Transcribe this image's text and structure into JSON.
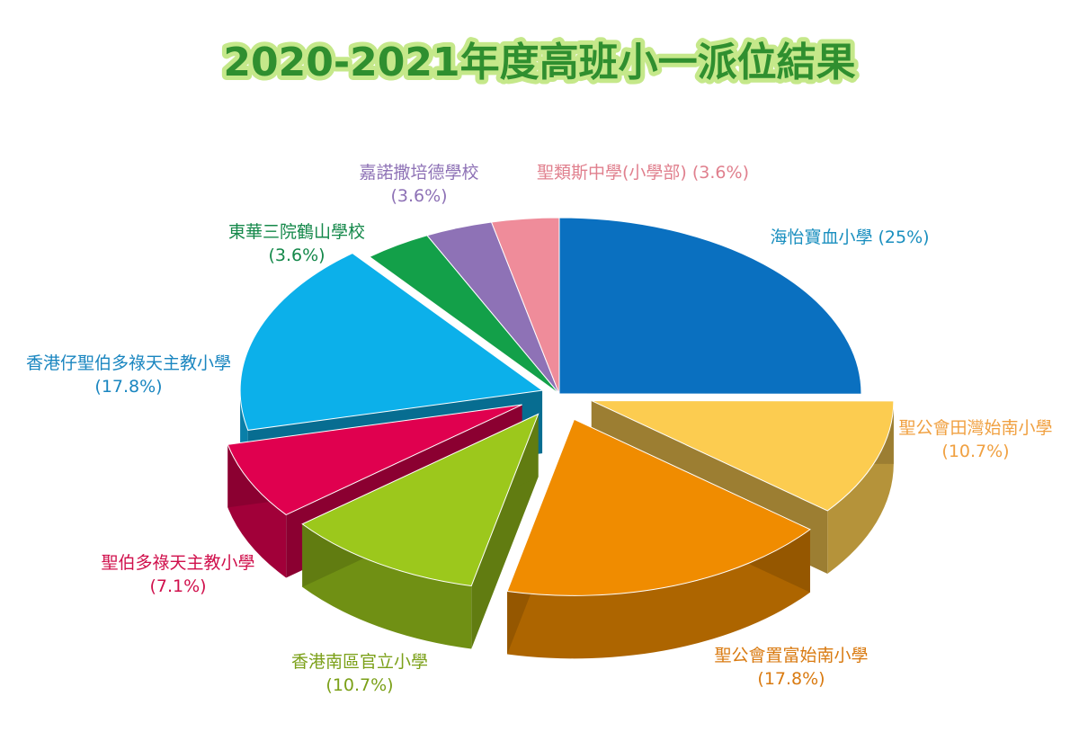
{
  "chart_data": {
    "type": "pie",
    "title": "2020-2021年度高班小一派位結果",
    "slices": [
      {
        "name": "海怡寶血小學",
        "value": 25,
        "pct_label": "(25%)",
        "color": "#0a70c0"
      },
      {
        "name": "聖公會田灣始南小學",
        "value": 10.7,
        "pct_label": "(10.7%)",
        "color": "#fccc50"
      },
      {
        "name": "聖公會置富始南小學",
        "value": 17.8,
        "pct_label": "(17.8%)",
        "color": "#f08c00"
      },
      {
        "name": "香港南區官立小學",
        "value": 10.7,
        "pct_label": "(10.7%)",
        "color": "#9cc81c"
      },
      {
        "name": "聖伯多祿天主教小學",
        "value": 7.1,
        "pct_label": "(7.1%)",
        "color": "#e0004f"
      },
      {
        "name": "香港仔聖伯多祿天主教小學",
        "value": 17.8,
        "pct_label": "(17.8%)",
        "color": "#0cb0ea"
      },
      {
        "name": "東華三院鶴山學校",
        "value": 3.6,
        "pct_label": "(3.6%)",
        "color": "#13a049"
      },
      {
        "name": "嘉諾撒培德學校",
        "value": 3.6,
        "pct_label": "(3.6%)",
        "color": "#8e72b6"
      },
      {
        "name": "聖類斯中學(小學部)",
        "value": 3.6,
        "pct_label": "(3.6%)",
        "color": "#ef8c9a"
      }
    ],
    "label_colors": [
      "#1a8fbf",
      "#f0a040",
      "#d97a10",
      "#7ba018",
      "#d0104c",
      "#1a86c0",
      "#14884a",
      "#8e72b6",
      "#e0808e"
    ]
  }
}
